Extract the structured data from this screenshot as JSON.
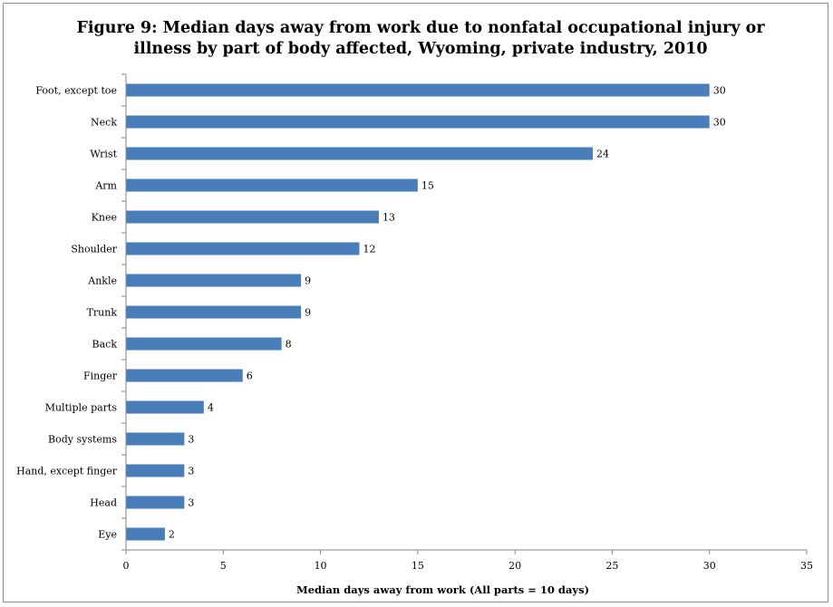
{
  "chart_data": {
    "type": "bar",
    "orientation": "horizontal",
    "title": "Figure 9: Median days away from work due to nonfatal occupational injury or illness by part of body affected, Wyoming, private industry, 2010",
    "xlabel": "Median days away from work (All parts = 10 days)",
    "ylabel": "",
    "categories": [
      "Foot, except toe",
      "Neck",
      "Wrist",
      "Arm",
      "Knee",
      "Shoulder",
      "Ankle",
      "Trunk",
      "Back",
      "Finger",
      "Multiple parts",
      "Body systems",
      "Hand, except finger",
      "Head",
      "Eye"
    ],
    "values": [
      30,
      30,
      24,
      15,
      13,
      12,
      9,
      9,
      8,
      6,
      4,
      3,
      3,
      3,
      2
    ],
    "xlim": [
      0,
      35
    ],
    "xticks": [
      0,
      5,
      10,
      15,
      20,
      25,
      30,
      35
    ],
    "data_labels": true,
    "grid": false,
    "legend": "none",
    "bar_color": "#4a7ebb"
  }
}
